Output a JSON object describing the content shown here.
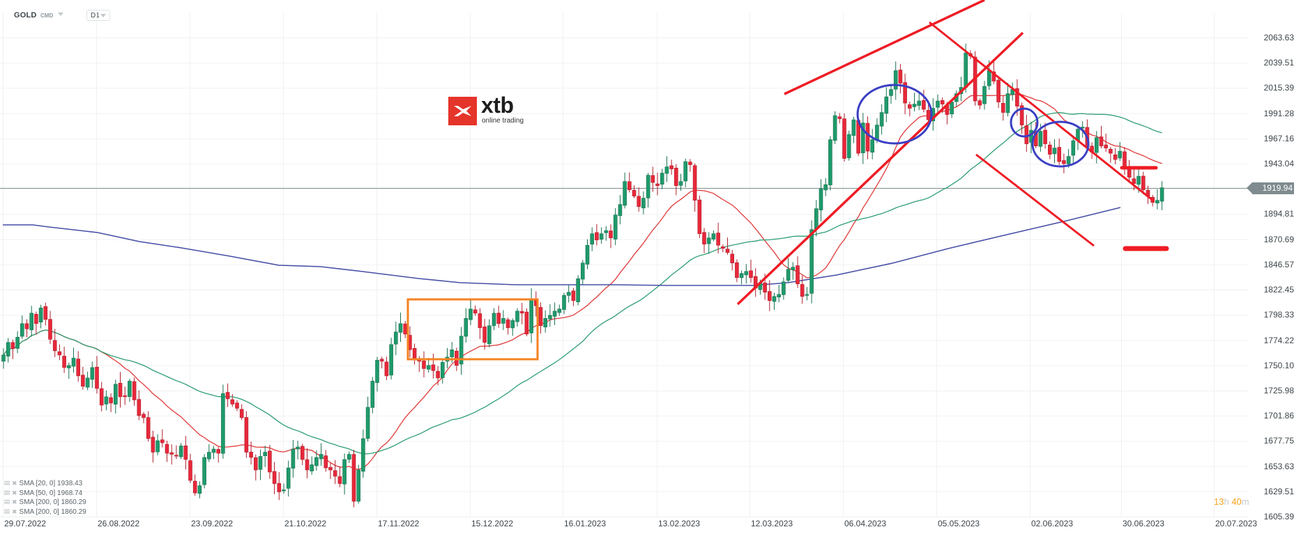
{
  "header": {
    "symbol": "GOLD",
    "category": "CMD",
    "timeframe": "D1"
  },
  "logo": {
    "brand": "xtb",
    "tagline": "online trading",
    "color": "#e5342a"
  },
  "price_axis": {
    "labels": [
      "2063.63",
      "2039.51",
      "2015.39",
      "1991.28",
      "1967.16",
      "1943.04",
      "1894.81",
      "1870.69",
      "1846.57",
      "1822.45",
      "1798.33",
      "1774.22",
      "1750.10",
      "1725.98",
      "1701.86",
      "1677.75",
      "1653.63",
      "1629.51",
      "1605.39"
    ],
    "current_price": "1919.94"
  },
  "time_axis": {
    "labels": [
      "29.07.2022",
      "26.08.2022",
      "23.09.2022",
      "21.10.2022",
      "17.11.2022",
      "15.12.2022",
      "16.01.2023",
      "13.02.2023",
      "12.03.2023",
      "06.04.2023",
      "05.05.2023",
      "02.06.2023",
      "30.06.2023",
      "20.07.2023"
    ]
  },
  "timer": {
    "hours": "13",
    "h": "h",
    "minutes": "40",
    "m": "m"
  },
  "legend": [
    {
      "label": "SMA [20, 0] 1938.43"
    },
    {
      "label": "SMA [50, 0] 1968.74"
    },
    {
      "label": "SMA [200, 0] 1860.29"
    },
    {
      "label": "SMA [200, 0] 1860.29"
    }
  ],
  "colors": {
    "bull": "#1f9a6b",
    "bear": "#e8283a",
    "sma20": "#e03a3a",
    "sma50": "#2e9e72",
    "sma200": "#474ea6",
    "annotation_red": "#ee1c25",
    "annotation_blue": "#3a3fc4",
    "annotation_orange": "#f58220"
  },
  "chart_data": {
    "type": "candlestick",
    "title": "GOLD CMD D1",
    "xlabel": "",
    "ylabel": "",
    "ylim": [
      1605.39,
      2063.63
    ],
    "grid": true,
    "current_price": 1919.94,
    "price_ticks": [
      2063.63,
      2039.51,
      2015.39,
      1991.28,
      1967.16,
      1943.04,
      1894.81,
      1870.69,
      1846.57,
      1822.45,
      1798.33,
      1774.22,
      1750.1,
      1725.98,
      1701.86,
      1677.75,
      1653.63,
      1629.51,
      1605.39
    ],
    "date_ticks": [
      "29.07.2022",
      "26.08.2022",
      "23.09.2022",
      "21.10.2022",
      "17.11.2022",
      "15.12.2022",
      "16.01.2023",
      "13.02.2023",
      "12.03.2023",
      "06.04.2023",
      "05.05.2023",
      "02.06.2023",
      "30.06.2023",
      "20.07.2023"
    ],
    "closes_approx": [
      1760,
      1772,
      1766,
      1777,
      1790,
      1785,
      1800,
      1790,
      1805,
      1794,
      1775,
      1764,
      1760,
      1748,
      1750,
      1757,
      1740,
      1730,
      1738,
      1748,
      1728,
      1712,
      1720,
      1714,
      1732,
      1720,
      1720,
      1735,
      1717,
      1702,
      1700,
      1680,
      1667,
      1678,
      1676,
      1666,
      1665,
      1664,
      1673,
      1660,
      1640,
      1628,
      1635,
      1662,
      1667,
      1670,
      1666,
      1723,
      1718,
      1713,
      1709,
      1700,
      1667,
      1662,
      1650,
      1663,
      1667,
      1648,
      1637,
      1629,
      1631,
      1652,
      1670,
      1672,
      1660,
      1650,
      1655,
      1662,
      1665,
      1652,
      1650,
      1644,
      1637,
      1660,
      1665,
      1620,
      1650,
      1680,
      1710,
      1735,
      1755,
      1754,
      1740,
      1770,
      1782,
      1790,
      1780,
      1765,
      1756,
      1754,
      1747,
      1750,
      1745,
      1738,
      1753,
      1758,
      1765,
      1750,
      1778,
      1795,
      1804,
      1800,
      1786,
      1772,
      1788,
      1800,
      1790,
      1795,
      1786,
      1793,
      1802,
      1800,
      1780,
      1813,
      1807,
      1788,
      1795,
      1798,
      1802,
      1804,
      1817,
      1820,
      1812,
      1833,
      1848,
      1865,
      1876,
      1870,
      1876,
      1879,
      1872,
      1894,
      1904,
      1926,
      1918,
      1912,
      1902,
      1910,
      1932,
      1925,
      1922,
      1934,
      1940,
      1938,
      1922,
      1926,
      1945,
      1942,
      1908,
      1876,
      1866,
      1872,
      1876,
      1865,
      1862,
      1858,
      1848,
      1834,
      1838,
      1840,
      1834,
      1824,
      1829,
      1820,
      1812,
      1816,
      1818,
      1830,
      1842,
      1844,
      1828,
      1816,
      1818,
      1880,
      1900,
      1919,
      1923,
      1966,
      1989,
      1986,
      1948,
      1971,
      1985,
      1953,
      1982,
      1955,
      1966,
      1980,
      1992,
      2007,
      2014,
      2032,
      2020,
      2001,
      1996,
      2000,
      2003,
      1995,
      1985,
      1996,
      2003,
      2000,
      1990,
      2002,
      2010,
      2016,
      2049,
      2046,
      2003,
      1999,
      2017,
      2032,
      2022,
      2002,
      1992,
      2010,
      2014,
      1998,
      1980,
      1962,
      1975,
      1960,
      1974,
      1962,
      1952,
      1958,
      1945,
      1943,
      1950,
      1965,
      1976,
      1978,
      1960,
      1954,
      1968,
      1960,
      1958,
      1953,
      1947,
      1955,
      1940,
      1930,
      1924,
      1931,
      1918,
      1912,
      1906,
      1908,
      1920
    ],
    "series": [
      {
        "name": "SMA [20, 0]",
        "last": 1938.43
      },
      {
        "name": "SMA [50, 0]",
        "last": 1968.74
      },
      {
        "name": "SMA [200, 0]",
        "last": 1860.29
      }
    ],
    "annotations": [
      {
        "type": "rectangle",
        "color": "orange",
        "from": "~28.11.2022",
        "to": "~30.12.2022",
        "price_range": [
          1752,
          1811
        ]
      },
      {
        "type": "trendline",
        "label": "rising support (Mar–May 2023)"
      },
      {
        "type": "trendline",
        "label": "upper rising line (Mar–May 2023)"
      },
      {
        "type": "channel",
        "label": "descending channel (May–Jun 2023)"
      },
      {
        "type": "ellipse",
        "color": "blue",
        "count": 3
      },
      {
        "type": "level",
        "price": 1939
      },
      {
        "type": "level",
        "price": 1862
      }
    ]
  }
}
